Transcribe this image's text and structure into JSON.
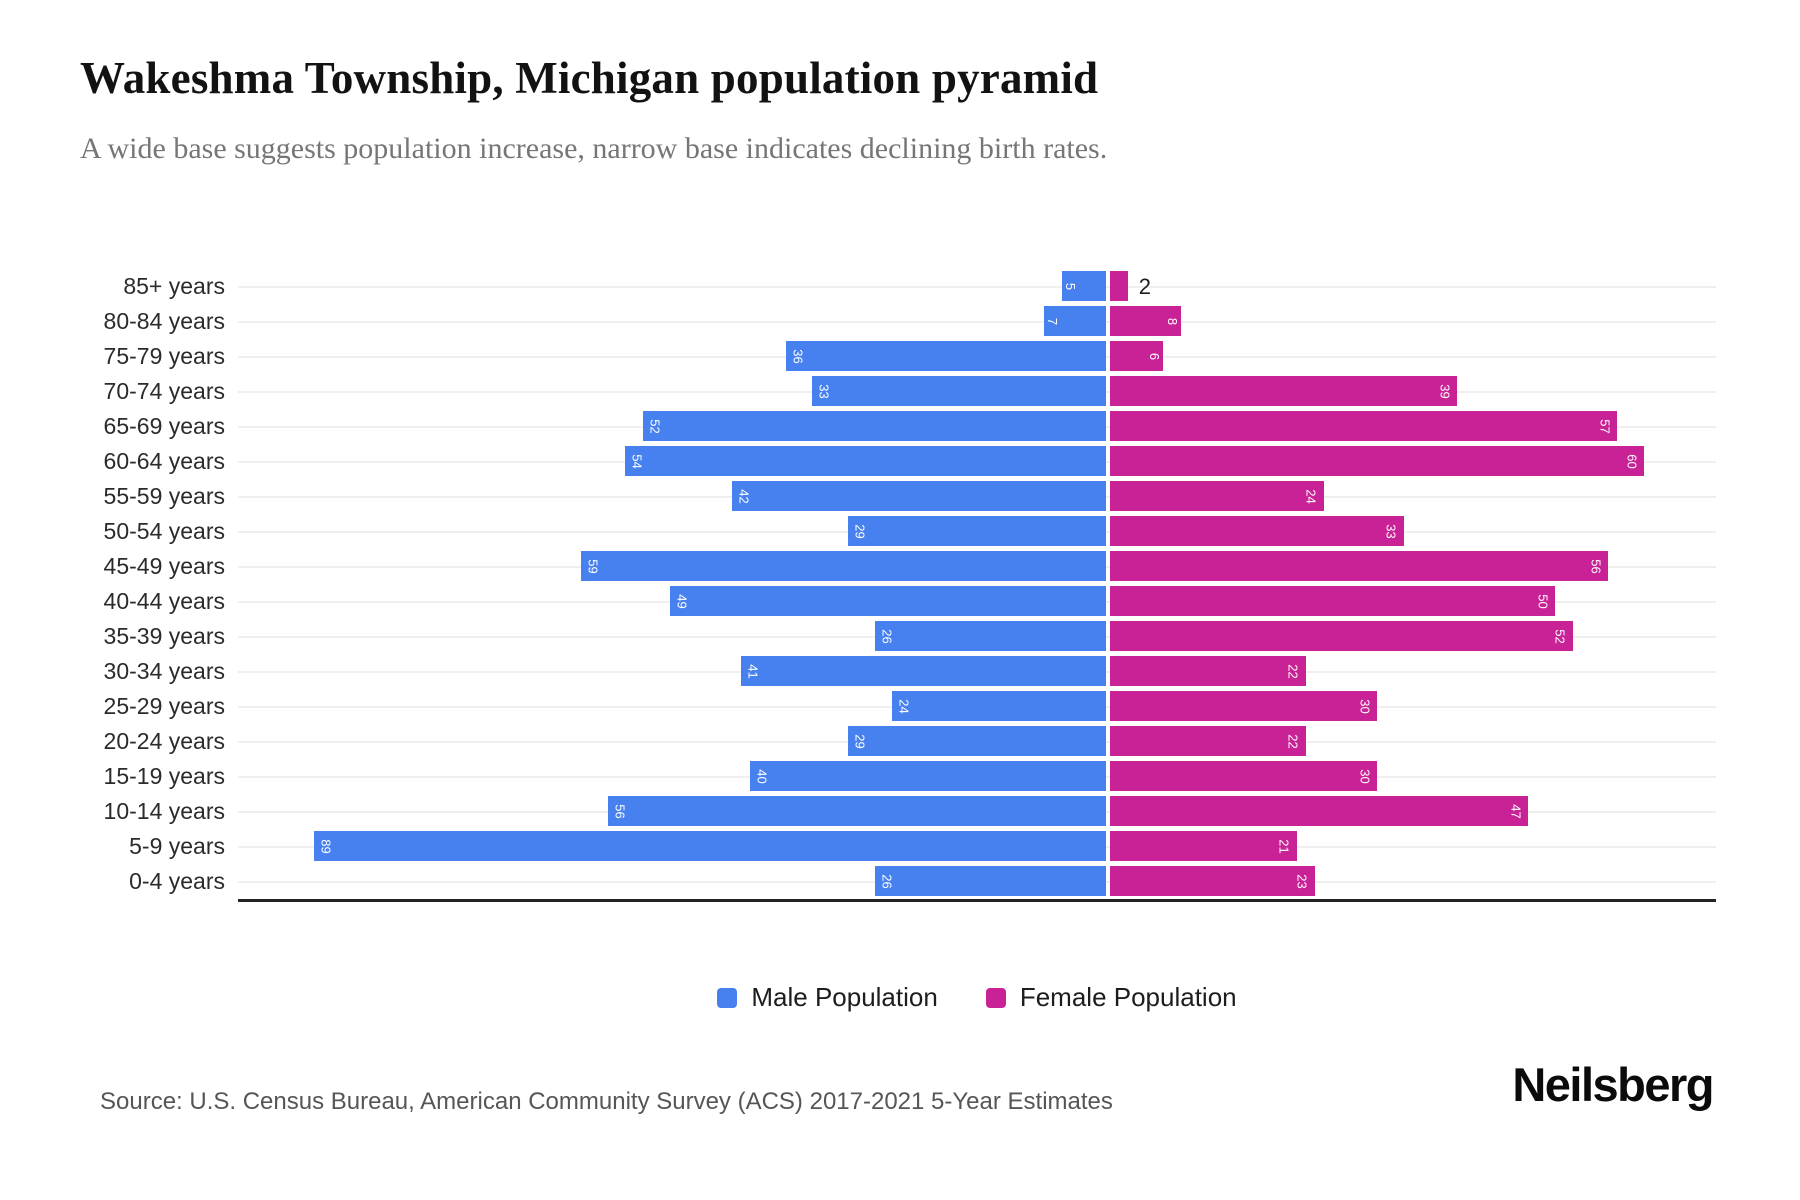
{
  "header": {
    "title": "Wakeshma Township, Michigan population pyramid",
    "subtitle": "A wide base suggests population increase, narrow base indicates declining birth rates."
  },
  "chart_data": {
    "type": "bar",
    "variant": "population-pyramid-diverging-horizontal",
    "title": "Wakeshma Township, Michigan population pyramid",
    "xlabel": "",
    "ylabel": "",
    "categories": [
      "85+ years",
      "80-84 years",
      "75-79 years",
      "70-74 years",
      "65-69 years",
      "60-64 years",
      "55-59 years",
      "50-54 years",
      "45-49 years",
      "40-44 years",
      "35-39 years",
      "30-34 years",
      "25-29 years",
      "20-24 years",
      "15-19 years",
      "10-14 years",
      "5-9 years",
      "0-4 years"
    ],
    "series": [
      {
        "name": "Male Population",
        "color": "#4781F0",
        "side": "left",
        "values": [
          5,
          7,
          36,
          33,
          52,
          54,
          42,
          29,
          59,
          49,
          26,
          41,
          24,
          29,
          40,
          56,
          89,
          26
        ]
      },
      {
        "name": "Female Population",
        "color": "#C92196",
        "side": "right",
        "values": [
          2,
          8,
          6,
          39,
          57,
          60,
          24,
          33,
          56,
          50,
          52,
          22,
          30,
          22,
          30,
          47,
          21,
          23
        ]
      }
    ],
    "value_labels": "inside-bar-ends-rotated-90, outside when bar too small",
    "axis": {
      "male_max": 89,
      "female_max": 60,
      "gridlines": "horizontal-per-row",
      "baseline": "bottom"
    }
  },
  "legend": {
    "items": [
      {
        "label": "Male Population",
        "color": "#4781F0"
      },
      {
        "label": "Female Population",
        "color": "#C92196"
      }
    ]
  },
  "footer": {
    "source": "Source: U.S. Census Bureau, American Community Survey (ACS) 2017-2021 5-Year Estimates",
    "brand": "Neilsberg"
  }
}
